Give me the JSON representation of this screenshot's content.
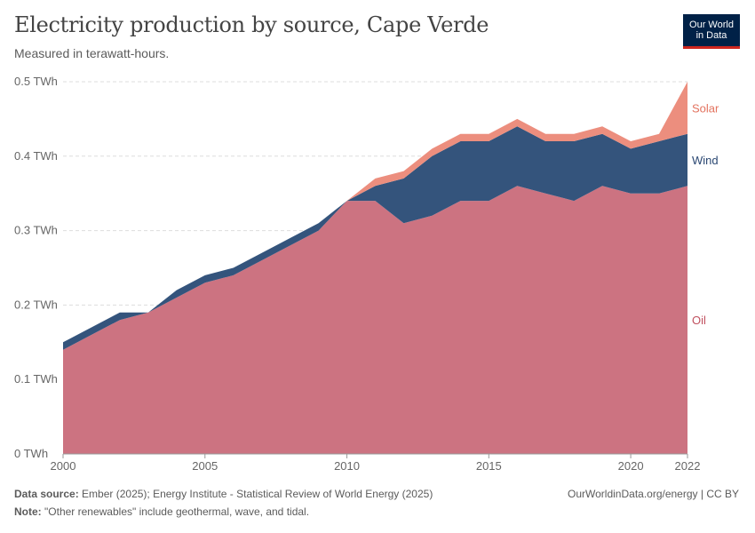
{
  "header": {
    "title": "Electricity production by source, Cape Verde",
    "subtitle": "Measured in terawatt-hours."
  },
  "logo": {
    "line1": "Our World",
    "line2": "in Data"
  },
  "footer": {
    "source_label": "Data source:",
    "source_text": "Ember (2025); Energy Institute - Statistical Review of World Energy (2025)",
    "site": "OurWorldinData.org/energy | CC BY",
    "note_label": "Note:",
    "note_text": "\"Other renewables\" include geothermal, wave, and tidal."
  },
  "chart_data": {
    "type": "area",
    "stacked": true,
    "x": [
      2000,
      2001,
      2002,
      2003,
      2004,
      2005,
      2006,
      2007,
      2008,
      2009,
      2010,
      2011,
      2012,
      2013,
      2014,
      2015,
      2016,
      2017,
      2018,
      2019,
      2020,
      2021,
      2022
    ],
    "x_ticks": [
      "2000",
      "2005",
      "2010",
      "2015",
      "2020",
      "2022"
    ],
    "y_ticks": [
      "0 TWh",
      "0.1 TWh",
      "0.2 TWh",
      "0.3 TWh",
      "0.4 TWh",
      "0.5 TWh"
    ],
    "ylim": [
      0,
      0.5
    ],
    "grid": true,
    "legend": "right-inline",
    "series": [
      {
        "name": "Oil",
        "color": "#cc7381",
        "values": [
          0.14,
          0.16,
          0.18,
          0.19,
          0.21,
          0.23,
          0.24,
          0.26,
          0.28,
          0.3,
          0.34,
          0.34,
          0.31,
          0.32,
          0.34,
          0.34,
          0.36,
          0.35,
          0.34,
          0.36,
          0.35,
          0.35,
          0.36
        ]
      },
      {
        "name": "Wind",
        "color": "#34547c",
        "values": [
          0.01,
          0.01,
          0.01,
          0.0,
          0.01,
          0.01,
          0.01,
          0.01,
          0.01,
          0.01,
          0.0,
          0.02,
          0.06,
          0.08,
          0.08,
          0.08,
          0.08,
          0.07,
          0.08,
          0.07,
          0.06,
          0.07,
          0.07
        ]
      },
      {
        "name": "Solar",
        "color": "#ec8e7e",
        "values": [
          0,
          0,
          0,
          0,
          0,
          0,
          0,
          0,
          0,
          0,
          0,
          0.01,
          0.01,
          0.01,
          0.01,
          0.01,
          0.01,
          0.01,
          0.01,
          0.01,
          0.01,
          0.01,
          0.07
        ]
      }
    ],
    "label_colors": {
      "Oil": "#c0505e",
      "Wind": "#2a4772",
      "Solar": "#e3735f"
    }
  }
}
